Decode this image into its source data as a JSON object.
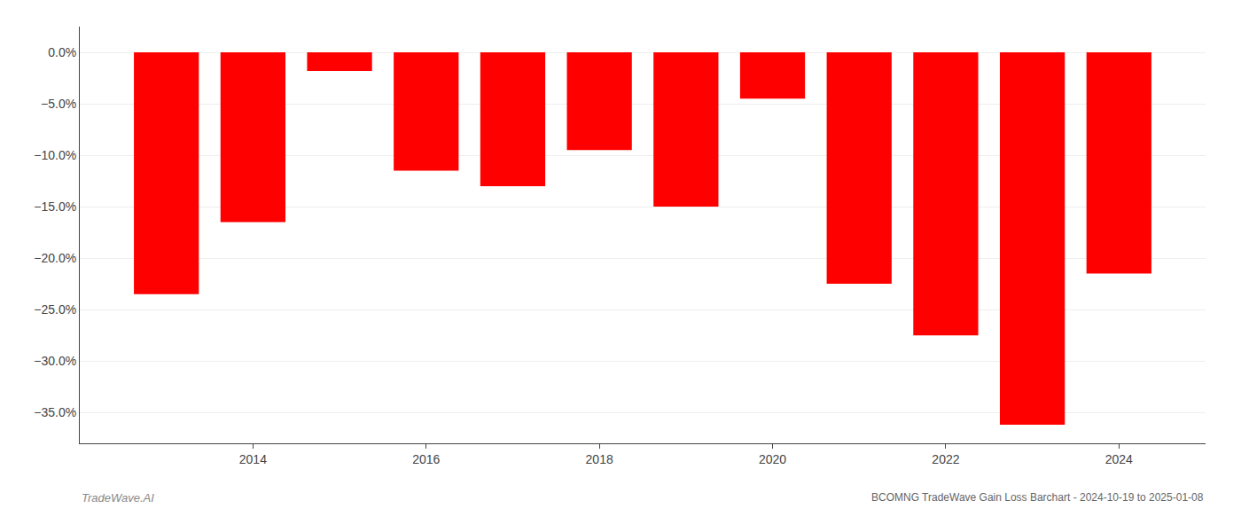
{
  "chart_data": {
    "type": "bar",
    "title": "BCOMNG TradeWave Gain Loss Barchart - 2024-10-19 to 2025-01-08",
    "annotations": [
      {
        "text": "TradeWave.AI"
      }
    ],
    "x": [
      2013,
      2014,
      2015,
      2016,
      2017,
      2018,
      2019,
      2020,
      2021,
      2022,
      2023,
      2024
    ],
    "values": [
      -23.5,
      -16.5,
      -1.8,
      -11.5,
      -13.0,
      -9.5,
      -15.0,
      -4.5,
      -22.5,
      -27.5,
      -36.2,
      -21.5
    ],
    "color": "#ff0000",
    "xlim": [
      2012,
      2025
    ],
    "xticks": [
      2014,
      2016,
      2018,
      2020,
      2022,
      2024
    ],
    "ylim": [
      -38.0,
      2.5
    ],
    "yticks": [
      {
        "value": 0.0,
        "label": "0.0%"
      },
      {
        "value": -5.0,
        "label": "−5.0%"
      },
      {
        "value": -10.0,
        "label": "−10.0%"
      },
      {
        "value": -15.0,
        "label": "−15.0%"
      },
      {
        "value": -20.0,
        "label": "−20.0%"
      },
      {
        "value": -25.0,
        "label": "−25.0%"
      },
      {
        "value": -30.0,
        "label": "−30.0%"
      },
      {
        "value": -35.0,
        "label": "−35.0%"
      }
    ],
    "grid": true
  }
}
